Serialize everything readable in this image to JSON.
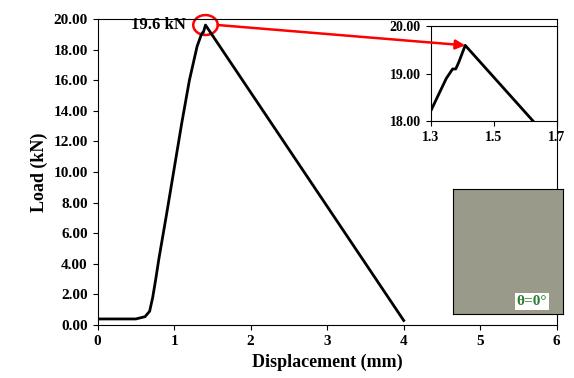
{
  "chart_data": {
    "type": "line",
    "x_label": "Displacement (mm)",
    "y_label": "Load (kN)",
    "x": [
      0,
      0.5,
      0.62,
      0.68,
      0.72,
      0.76,
      0.8,
      0.9,
      1.0,
      1.1,
      1.2,
      1.3,
      1.35,
      1.37,
      1.38,
      1.39,
      1.41,
      4.0
    ],
    "series": [
      {
        "name": "Load",
        "color": "#000000",
        "values": [
          0.4,
          0.4,
          0.55,
          0.9,
          1.8,
          3.0,
          4.3,
          7.2,
          10.2,
          13.2,
          16.0,
          18.2,
          18.9,
          19.1,
          19.1,
          19.25,
          19.6,
          0.3
        ]
      }
    ],
    "xlim": [
      0,
      6
    ],
    "xticks": [
      0,
      1,
      2,
      3,
      4,
      5,
      6
    ],
    "ylim": [
      0,
      20
    ],
    "yticks": [
      {
        "value": 0,
        "label": "0.00"
      },
      {
        "value": 2,
        "label": "2.00"
      },
      {
        "value": 4,
        "label": "4.00"
      },
      {
        "value": 6,
        "label": "6.00"
      },
      {
        "value": 8,
        "label": "8.00"
      },
      {
        "value": 10,
        "label": "10.00"
      },
      {
        "value": 12,
        "label": "12.00"
      },
      {
        "value": 14,
        "label": "14.00"
      },
      {
        "value": 16,
        "label": "16.00"
      },
      {
        "value": 18,
        "label": "18.00"
      },
      {
        "value": 20,
        "label": "20.00"
      }
    ],
    "grid": false,
    "annotations": [
      {
        "text": "19.6 kN",
        "x": 1.41,
        "y": 19.6
      }
    ],
    "inset": {
      "xlim": [
        1.3,
        1.7
      ],
      "xticks": [
        1.3,
        1.5,
        1.7
      ],
      "ylim": [
        18,
        20
      ],
      "yticks": [
        {
          "value": 18,
          "label": "18.00"
        },
        {
          "value": 19,
          "label": "19.00"
        },
        {
          "value": 20,
          "label": "20.00"
        }
      ]
    },
    "photo_caption": "θ=0°"
  }
}
